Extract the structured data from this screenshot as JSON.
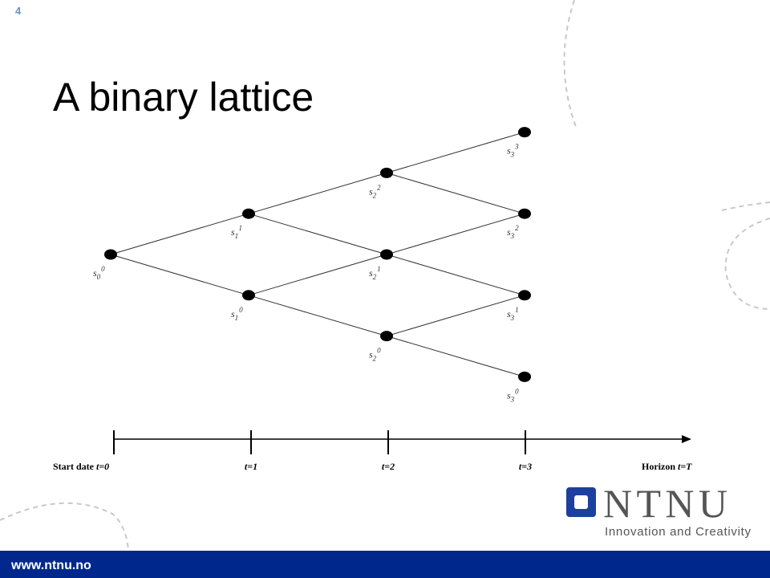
{
  "slide_number": "4",
  "title": "A binary lattice",
  "nodes": [
    {
      "base": "s",
      "sub": "0",
      "sup": "0"
    },
    {
      "base": "s",
      "sub": "1",
      "sup": "1"
    },
    {
      "base": "s",
      "sub": "1",
      "sup": "0"
    },
    {
      "base": "s",
      "sub": "2",
      "sup": "2"
    },
    {
      "base": "s",
      "sub": "2",
      "sup": "1"
    },
    {
      "base": "s",
      "sub": "2",
      "sup": "0"
    },
    {
      "base": "s",
      "sub": "3",
      "sup": "3"
    },
    {
      "base": "s",
      "sub": "3",
      "sup": "2"
    },
    {
      "base": "s",
      "sub": "3",
      "sup": "1"
    },
    {
      "base": "s",
      "sub": "3",
      "sup": "0"
    }
  ],
  "timeline": [
    {
      "text": "Start date",
      "var": "t=0"
    },
    {
      "var": "t=1"
    },
    {
      "var": "t=2"
    },
    {
      "var": "t=3"
    },
    {
      "text": "Horizon",
      "var": "t=T"
    }
  ],
  "logo": {
    "name": "NTNU",
    "tagline": "Innovation and Creativity"
  },
  "footer": "www.ntnu.no"
}
